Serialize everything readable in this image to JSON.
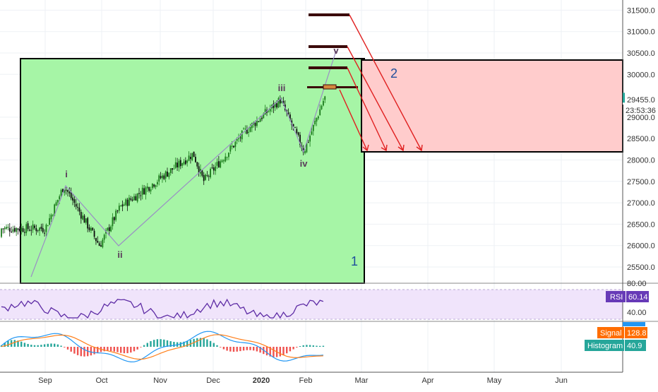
{
  "colors": {
    "up": "#1a7a1a",
    "down": "#0b0b0b",
    "green_zone": "#a6f5a6",
    "red_zone": "#ffcccc",
    "rsi_line": "#5e2ca5",
    "rsi_band": "#f0e4fb",
    "macd_line": "#2196f3",
    "signal_line": "#ff7f1a",
    "hist_pos": "#26a69a",
    "hist_neg": "#ef5350",
    "target_bar": "#3b0a0a",
    "current_bar": "#d4883e",
    "arrow": "#e02020",
    "wave_line": "#9a8fc4",
    "label_blue": "#1f4e9c",
    "rsi_badge": "#673ab7",
    "signal_badge": "#ff6d00",
    "histogram_badge": "#26a69a",
    "price_badge": "#26a69a"
  },
  "price_axis": {
    "ticks": [
      "31500.0",
      "31000.0",
      "30500.0",
      "30000.0",
      "29000.0",
      "28500.0",
      "28000.0",
      "27500.0",
      "27000.0",
      "26500.0",
      "26000.0",
      "25500.0"
    ],
    "last_price": "29455.0",
    "countdown": "23:53:36"
  },
  "rsi_panel": {
    "ticks": [
      "80.00",
      "40.00"
    ],
    "label": "RSI",
    "value": "60.14"
  },
  "macd_panel": {
    "signal_label": "Signal",
    "signal_value": "128.8",
    "histogram_label": "Histogram",
    "histogram_value": "40.9"
  },
  "time_axis": [
    "Sep",
    "Oct",
    "Nov",
    "Dec",
    "2020",
    "Feb",
    "Mar",
    "Apr",
    "May",
    "Jun"
  ],
  "wave_labels": [
    "i",
    "ii",
    "iii",
    "iv",
    "v"
  ],
  "zone_labels": {
    "green": "1",
    "red": "2"
  },
  "chart_data": {
    "type": "candlestick",
    "series": [
      {
        "values": [
          {
            "date": "2019-09-01",
            "close": 26400
          },
          {
            "date": "2019-09-12",
            "close": 27400
          },
          {
            "date": "2019-10-03",
            "close": 26000
          },
          {
            "date": "2019-10-15",
            "close": 26900
          },
          {
            "date": "2019-11-05",
            "close": 27500
          },
          {
            "date": "2019-11-27",
            "close": 28150
          },
          {
            "date": "2019-12-03",
            "close": 27500
          },
          {
            "date": "2019-12-27",
            "close": 28650
          },
          {
            "date": "2020-01-17",
            "close": 29400
          },
          {
            "date": "2020-01-31",
            "close": 28200
          },
          {
            "date": "2020-02-12",
            "close": 29455
          }
        ]
      }
    ],
    "zones": [
      {
        "label": "1",
        "y_range": [
          25250,
          30400
        ]
      },
      {
        "label": "2",
        "x_start": "2020-03-01",
        "y_range": [
          28200,
          30400
        ]
      }
    ],
    "target_levels": [
      31450,
      30700,
      30200,
      29750
    ],
    "ylim": [
      25150,
      31800
    ]
  }
}
